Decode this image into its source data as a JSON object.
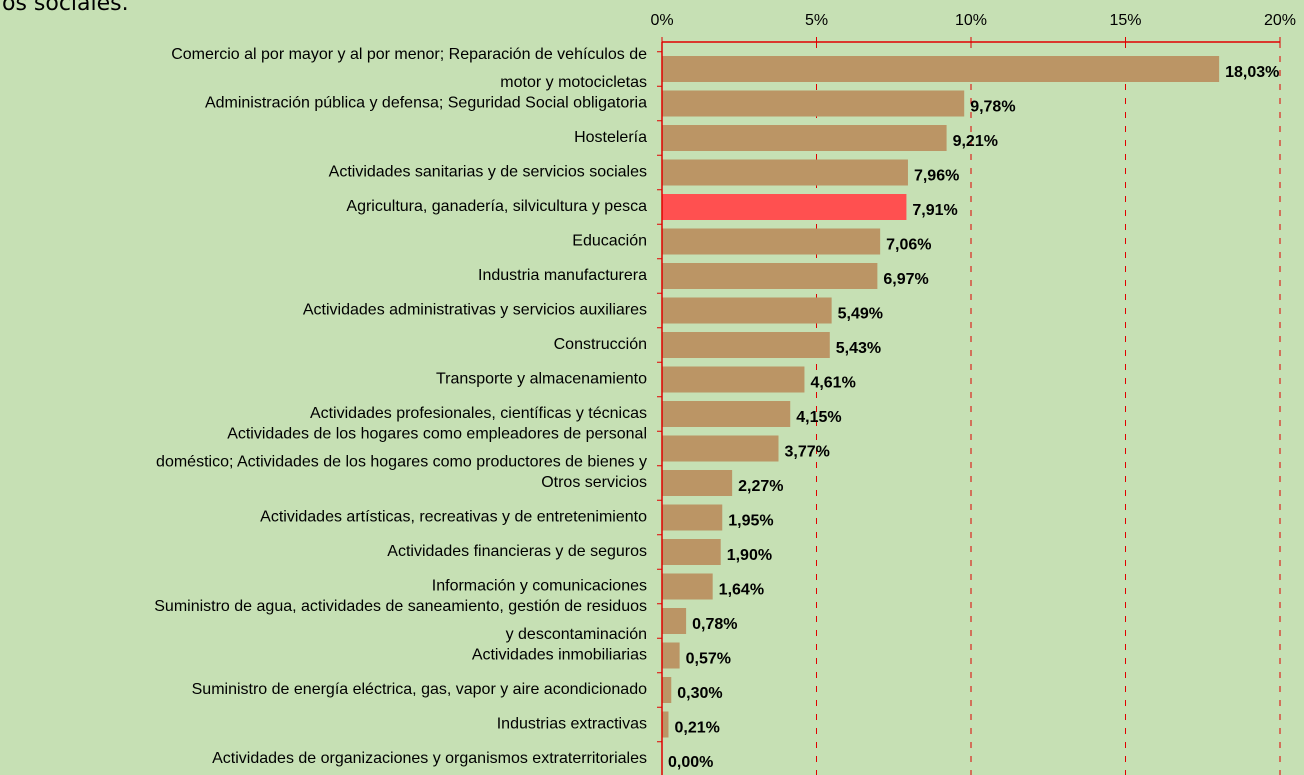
{
  "chart_data": {
    "type": "barh",
    "title": "os sociales.",
    "categories": [
      "Comercio al por mayor y al por menor; Reparación de vehículos de\nmotor y motocicletas",
      "Administración pública y defensa; Seguridad Social obligatoria",
      "Hostelería",
      "Actividades sanitarias y de servicios sociales",
      "Agricultura, ganadería, silvicultura y pesca",
      "Educación",
      "Industria manufacturera",
      "Actividades administrativas y servicios auxiliares",
      "Construcción",
      "Transporte y almacenamiento",
      "Actividades profesionales, científicas y técnicas",
      "Actividades de los hogares como empleadores de personal\ndoméstico; Actividades de los hogares como productores de bienes y",
      "Otros servicios",
      "Actividades artísticas, recreativas y de entretenimiento",
      "Actividades financieras y de seguros",
      "Información y comunicaciones",
      "Suministro de agua, actividades de saneamiento, gestión de residuos\ny descontaminación",
      "Actividades inmobiliarias",
      "Suministro de energía eléctrica, gas, vapor y aire acondicionado",
      "Industrias extractivas",
      "Actividades de organizaciones y organismos extraterritoriales"
    ],
    "values": [
      18.03,
      9.78,
      9.21,
      7.96,
      7.91,
      7.06,
      6.97,
      5.49,
      5.43,
      4.61,
      4.15,
      3.77,
      2.27,
      1.95,
      1.9,
      1.64,
      0.78,
      0.57,
      0.3,
      0.21,
      0.0
    ],
    "value_labels": [
      "18,03%",
      "9,78%",
      "9,21%",
      "7,96%",
      "7,91%",
      "7,06%",
      "6,97%",
      "5,49%",
      "5,43%",
      "4,61%",
      "4,15%",
      "3,77%",
      "2,27%",
      "1,95%",
      "1,90%",
      "1,64%",
      "0,78%",
      "0,57%",
      "0,30%",
      "0,21%",
      "0,00%"
    ],
    "colors": [
      "#bb9565",
      "#bb9565",
      "#bb9565",
      "#bb9565",
      "#ff5050",
      "#bb9565",
      "#bb9565",
      "#bb9565",
      "#bb9565",
      "#bb9565",
      "#bb9565",
      "#bb9565",
      "#bb9565",
      "#bb9565",
      "#bb9565",
      "#bb9565",
      "#bb9565",
      "#bb9565",
      "#bb9565",
      "#bb9565",
      "#bb9565"
    ],
    "xlim": [
      0,
      20
    ],
    "xticks": [
      {
        "value": 0,
        "label": "0%"
      },
      {
        "value": 5,
        "label": "5%"
      },
      {
        "value": 10,
        "label": "10%"
      },
      {
        "value": 15,
        "label": "15%"
      },
      {
        "value": 20,
        "label": "20%"
      }
    ],
    "grid": true
  }
}
